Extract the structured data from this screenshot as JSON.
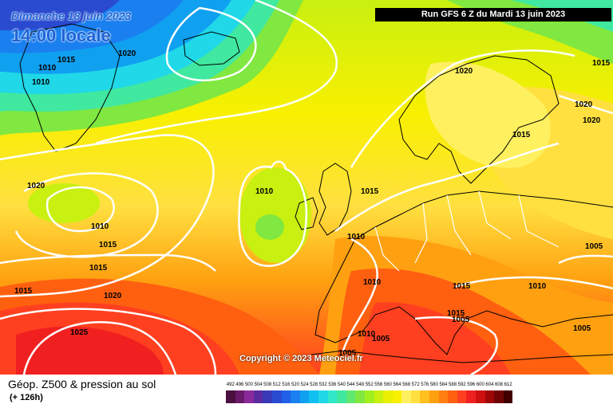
{
  "header": {
    "date": "Dimanche 18 juin 2023",
    "time": "14:00 locale",
    "run": "Run GFS 6 Z du Mardi 13 juin 2023"
  },
  "copyright": "Copyright © 2023 Meteociel.fr",
  "footer": {
    "title": "Géop. Z500 & pression au sol",
    "subtitle": "(+ 126h)"
  },
  "legend": {
    "values": [
      "492",
      "496",
      "500",
      "504",
      "508",
      "512",
      "516",
      "520",
      "524",
      "528",
      "532",
      "536",
      "540",
      "544",
      "548",
      "552",
      "556",
      "560",
      "564",
      "568",
      "572",
      "576",
      "580",
      "584",
      "588",
      "592",
      "596",
      "600",
      "604",
      "608",
      "612"
    ],
    "colors": [
      "#4a1040",
      "#6a1a6a",
      "#8a2a9a",
      "#5a2aa0",
      "#3a3ab8",
      "#2a4ad0",
      "#2060e8",
      "#1a80f0",
      "#10a0f0",
      "#10c0f0",
      "#20d8e8",
      "#30e8c8",
      "#40e8a0",
      "#60e870",
      "#80e840",
      "#a0f020",
      "#c8f010",
      "#e8f000",
      "#f8f000",
      "#fff060",
      "#ffe040",
      "#ffc020",
      "#ffa010",
      "#ff8010",
      "#ff6010",
      "#ff4020",
      "#f02020",
      "#d01010",
      "#a00808",
      "#700404",
      "#400000"
    ]
  },
  "isobar_labels": [
    "1015",
    "1020",
    "1010",
    "1010",
    "1020",
    "1015",
    "1020",
    "1020",
    "1015",
    "1020",
    "1010",
    "1015",
    "1010",
    "1010",
    "1015",
    "1015",
    "1005",
    "1015",
    "1020",
    "1010",
    "1010",
    "1015",
    "1015",
    "1025",
    "1010",
    "1005",
    "1005",
    "1005",
    "1005"
  ]
}
